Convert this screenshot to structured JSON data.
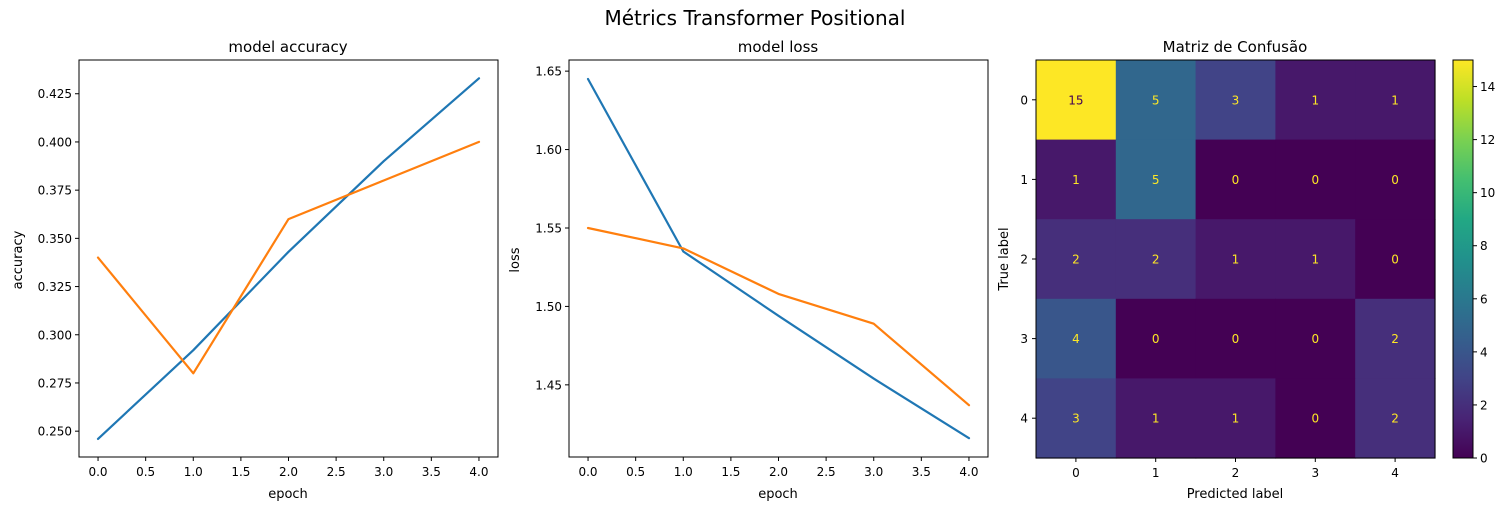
{
  "figure_title": "Métrics Transformer Positional",
  "chart_data": [
    {
      "type": "line",
      "title": "model accuracy",
      "xlabel": "epoch",
      "ylabel": "accuracy",
      "x": [
        0,
        1,
        2,
        3,
        4
      ],
      "xticks": [
        "0.0",
        "0.5",
        "1.0",
        "1.5",
        "2.0",
        "2.5",
        "3.0",
        "3.5",
        "4.0"
      ],
      "yticks": [
        "0.250",
        "0.275",
        "0.300",
        "0.325",
        "0.350",
        "0.375",
        "0.400",
        "0.425"
      ],
      "xlim": [
        -0.2,
        4.2
      ],
      "ylim": [
        0.2366,
        0.4425
      ],
      "grid": false,
      "series": [
        {
          "color": "#1f77b4",
          "values": [
            0.246,
            0.292,
            0.343,
            0.39,
            0.433
          ]
        },
        {
          "color": "#ff7f0e",
          "values": [
            0.34,
            0.28,
            0.36,
            0.38,
            0.4
          ]
        }
      ]
    },
    {
      "type": "line",
      "title": "model loss",
      "xlabel": "epoch",
      "ylabel": "loss",
      "x": [
        0,
        1,
        2,
        3,
        4
      ],
      "xticks": [
        "0.0",
        "0.5",
        "1.0",
        "1.5",
        "2.0",
        "2.5",
        "3.0",
        "3.5",
        "4.0"
      ],
      "yticks": [
        "1.45",
        "1.50",
        "1.55",
        "1.60",
        "1.65"
      ],
      "xlim": [
        -0.2,
        4.2
      ],
      "ylim": [
        1.404,
        1.6571
      ],
      "grid": false,
      "series": [
        {
          "color": "#1f77b4",
          "values": [
            1.645,
            1.535,
            1.494,
            1.454,
            1.416
          ]
        },
        {
          "color": "#ff7f0e",
          "values": [
            1.55,
            1.537,
            1.508,
            1.489,
            1.437
          ]
        }
      ]
    },
    {
      "type": "heatmap",
      "title": "Matriz de Confusão",
      "xlabel": "Predicted label",
      "ylabel": "True label",
      "x_categories": [
        "0",
        "1",
        "2",
        "3",
        "4"
      ],
      "y_categories": [
        "0",
        "1",
        "2",
        "3",
        "4"
      ],
      "values": [
        [
          15,
          5,
          3,
          1,
          1
        ],
        [
          1,
          5,
          0,
          0,
          0
        ],
        [
          2,
          2,
          1,
          1,
          0
        ],
        [
          4,
          0,
          0,
          0,
          2
        ],
        [
          3,
          1,
          1,
          0,
          2
        ]
      ],
      "colormap": "viridis",
      "vmin": 0,
      "vmax": 15,
      "colorbar_ticks": [
        "0",
        "2",
        "4",
        "6",
        "8",
        "10",
        "12",
        "14"
      ],
      "text_color_light": "#fde725",
      "text_color_dark": "#440154"
    }
  ]
}
